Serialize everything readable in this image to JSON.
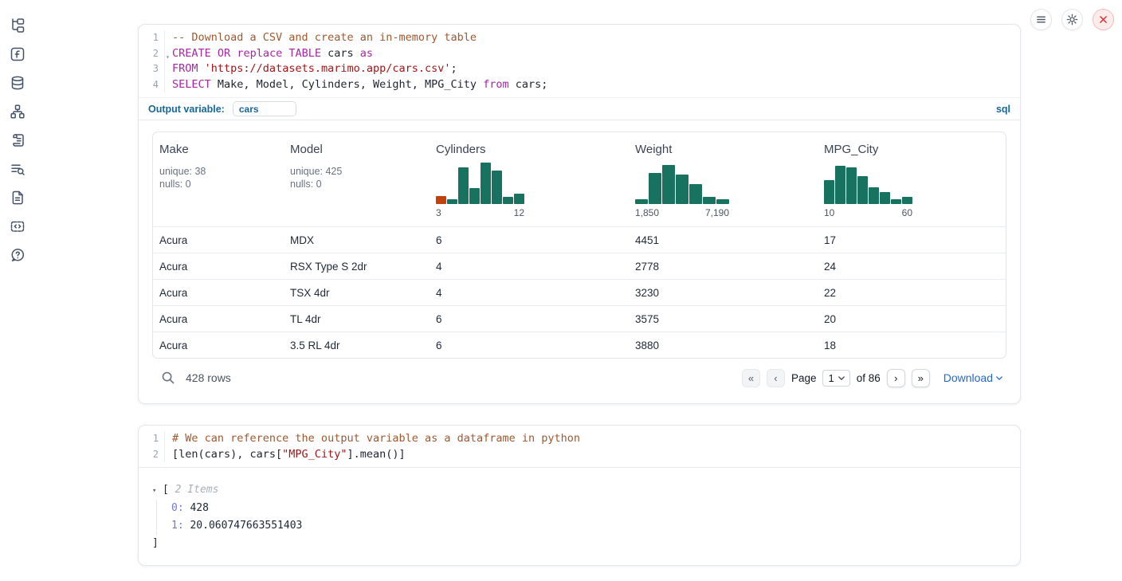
{
  "colors": {
    "accent_blue": "#16679A",
    "link_blue": "#2468CE",
    "hist_teal": "#17735F",
    "hist_orange": "#C2410C",
    "code_keyword": "#A626A4",
    "code_string": "#A31515",
    "code_comment": "#A0582F",
    "danger_red": "#E23C3C",
    "tree_key_purple": "#7678CF"
  },
  "sidebar": {
    "icons": [
      "file-tree-icon",
      "function-icon",
      "database-icon",
      "dependency-graph-icon",
      "script-icon",
      "log-search-icon",
      "document-icon",
      "snippets-icon",
      "help-icon"
    ]
  },
  "topbar": {
    "buttons": [
      {
        "name": "menu-button",
        "icon": "hamburger-icon"
      },
      {
        "name": "settings-button",
        "icon": "gear-icon"
      },
      {
        "name": "shutdown-button",
        "icon": "close-icon"
      }
    ]
  },
  "sql_cell": {
    "lines": [
      {
        "num": "1",
        "tokens": [
          {
            "c": "comment",
            "t": "-- Download a CSV and create an in-memory table"
          }
        ]
      },
      {
        "num": "2",
        "fold": true,
        "tokens": [
          {
            "c": "kw",
            "t": "CREATE"
          },
          {
            "c": "plain",
            "t": " "
          },
          {
            "c": "kw",
            "t": "OR"
          },
          {
            "c": "plain",
            "t": " "
          },
          {
            "c": "kw",
            "t": "replace"
          },
          {
            "c": "plain",
            "t": " "
          },
          {
            "c": "kw",
            "t": "TABLE"
          },
          {
            "c": "plain",
            "t": " cars "
          },
          {
            "c": "kw",
            "t": "as"
          }
        ]
      },
      {
        "num": "3",
        "tokens": [
          {
            "c": "kw",
            "t": "FROM"
          },
          {
            "c": "plain",
            "t": " "
          },
          {
            "c": "str",
            "t": "'https://datasets.marimo.app/cars.csv'"
          },
          {
            "c": "plain",
            "t": ";"
          }
        ]
      },
      {
        "num": "4",
        "tokens": [
          {
            "c": "kw",
            "t": "SELECT"
          },
          {
            "c": "plain",
            "t": " Make, Model, Cylinders, Weight, MPG_City "
          },
          {
            "c": "kw",
            "t": "from"
          },
          {
            "c": "plain",
            "t": " cars;"
          }
        ]
      }
    ],
    "output_variable_label": "Output variable:",
    "output_variable_value": "cars",
    "language_badge": "sql"
  },
  "table": {
    "columns": [
      {
        "name": "Make",
        "stats": [
          "unique: 38",
          "nulls: 0"
        ]
      },
      {
        "name": "Model",
        "stats": [
          "unique: 425",
          "nulls: 0"
        ]
      },
      {
        "name": "Cylinders",
        "hist": {
          "bars": [
            {
              "v": 20,
              "c": "orange"
            },
            {
              "v": 12
            },
            {
              "v": 88
            },
            {
              "v": 38
            },
            {
              "v": 100
            },
            {
              "v": 80
            },
            {
              "v": 18
            },
            {
              "v": 25
            }
          ],
          "min_label": "3",
          "max_label": "12"
        }
      },
      {
        "name": "Weight",
        "hist": {
          "bars": [
            {
              "v": 12
            },
            {
              "v": 75
            },
            {
              "v": 95
            },
            {
              "v": 72
            },
            {
              "v": 48
            },
            {
              "v": 18
            },
            {
              "v": 12
            }
          ],
          "min_label": "1,850",
          "max_label": "7,190"
        }
      },
      {
        "name": "MPG_City",
        "hist": {
          "bars": [
            {
              "v": 58
            },
            {
              "v": 93
            },
            {
              "v": 88
            },
            {
              "v": 68
            },
            {
              "v": 40
            },
            {
              "v": 28
            },
            {
              "v": 12
            },
            {
              "v": 18
            }
          ],
          "min_label": "10",
          "max_label": "60"
        }
      }
    ],
    "rows": [
      [
        "Acura",
        "MDX",
        "6",
        "4451",
        "17"
      ],
      [
        "Acura",
        "RSX Type S 2dr",
        "4",
        "2778",
        "24"
      ],
      [
        "Acura",
        "TSX 4dr",
        "4",
        "3230",
        "22"
      ],
      [
        "Acura",
        "TL 4dr",
        "6",
        "3575",
        "20"
      ],
      [
        "Acura",
        "3.5 RL 4dr",
        "6",
        "3880",
        "18"
      ]
    ],
    "footer": {
      "rows_label": "428 rows",
      "page_label": "Page",
      "page_value": "1",
      "of_label": "of 86",
      "download_label": "Download"
    }
  },
  "python_cell": {
    "lines": [
      {
        "num": "1",
        "tokens": [
          {
            "c": "comment",
            "t": "# We can reference the output variable as a dataframe in python"
          }
        ]
      },
      {
        "num": "2",
        "tokens": [
          {
            "c": "plain",
            "t": "[len(cars), cars["
          },
          {
            "c": "str",
            "t": "\"MPG_City\""
          },
          {
            "c": "plain",
            "t": "].mean()]"
          }
        ]
      }
    ]
  },
  "output_tree": {
    "bracket_open": "[",
    "summary": "2 Items",
    "entries": [
      {
        "index": "0",
        "value": "428"
      },
      {
        "index": "1",
        "value": "20.060747663551403"
      }
    ],
    "bracket_close": "]"
  }
}
